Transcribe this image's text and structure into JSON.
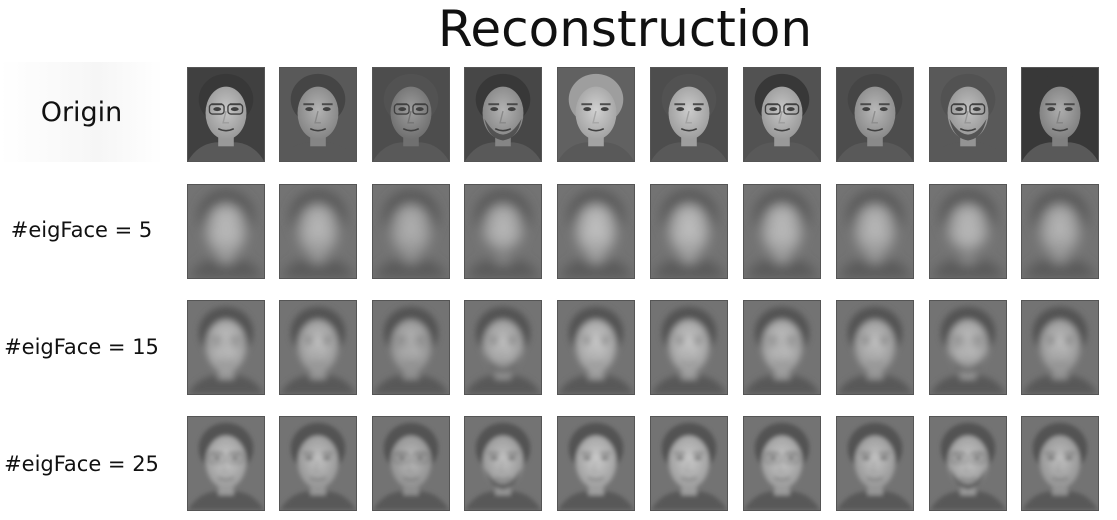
{
  "title": "Reconstruction",
  "rows": [
    {
      "label": "Origin",
      "type": "origin"
    },
    {
      "label": "#eigFace = 5",
      "type": "eig5"
    },
    {
      "label": "#eigFace = 15",
      "type": "eig15"
    },
    {
      "label": "#eigFace = 25",
      "type": "eig25"
    }
  ],
  "faces_per_row": 10
}
